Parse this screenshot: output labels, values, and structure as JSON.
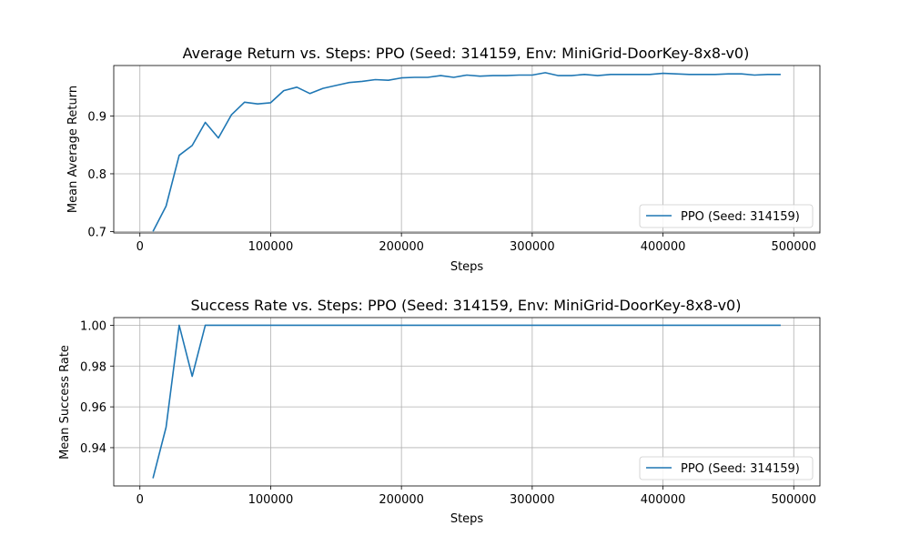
{
  "colors": {
    "series": "#1f77b4",
    "grid": "#b0b0b0",
    "background": "#ffffff"
  },
  "chart_data": [
    {
      "type": "line",
      "title": "Average Return vs. Steps: PPO (Seed: 314159, Env: MiniGrid-DoorKey-8x8-v0)",
      "xlabel": "Steps",
      "ylabel": "Mean Average Return",
      "xlim": [
        -20000,
        520000
      ],
      "ylim": [
        0.6975,
        0.9875
      ],
      "xticks": [
        0,
        100000,
        200000,
        300000,
        400000,
        500000
      ],
      "xtick_labels": [
        "0",
        "100000",
        "200000",
        "300000",
        "400000",
        "500000"
      ],
      "yticks": [
        0.7,
        0.8,
        0.9
      ],
      "ytick_labels": [
        "0.7",
        "0.8",
        "0.9"
      ],
      "grid": true,
      "legend_position": "lower-right",
      "series": [
        {
          "name": "PPO (Seed: 314159)",
          "x": [
            10000,
            20000,
            30000,
            40000,
            50000,
            60000,
            70000,
            80000,
            90000,
            100000,
            110000,
            120000,
            130000,
            140000,
            150000,
            160000,
            170000,
            180000,
            190000,
            200000,
            210000,
            220000,
            230000,
            240000,
            250000,
            260000,
            270000,
            280000,
            290000,
            300000,
            310000,
            320000,
            330000,
            340000,
            350000,
            360000,
            370000,
            380000,
            390000,
            400000,
            410000,
            420000,
            430000,
            440000,
            450000,
            460000,
            470000,
            480000,
            490000
          ],
          "y": [
            0.7,
            0.744,
            0.832,
            0.849,
            0.889,
            0.862,
            0.902,
            0.924,
            0.921,
            0.923,
            0.944,
            0.95,
            0.939,
            0.948,
            0.953,
            0.958,
            0.96,
            0.963,
            0.962,
            0.966,
            0.967,
            0.967,
            0.97,
            0.967,
            0.971,
            0.969,
            0.97,
            0.97,
            0.971,
            0.971,
            0.975,
            0.97,
            0.97,
            0.972,
            0.97,
            0.972,
            0.972,
            0.972,
            0.972,
            0.974,
            0.973,
            0.972,
            0.972,
            0.972,
            0.973,
            0.973,
            0.971,
            0.972,
            0.972
          ]
        }
      ]
    },
    {
      "type": "line",
      "title": "Success Rate vs. Steps: PPO (Seed: 314159, Env: MiniGrid-DoorKey-8x8-v0)",
      "xlabel": "Steps",
      "ylabel": "Mean Success Rate",
      "xlim": [
        -20000,
        520000
      ],
      "ylim": [
        0.92125,
        1.00375
      ],
      "xticks": [
        0,
        100000,
        200000,
        300000,
        400000,
        500000
      ],
      "xtick_labels": [
        "0",
        "100000",
        "200000",
        "300000",
        "400000",
        "500000"
      ],
      "yticks": [
        0.94,
        0.96,
        0.98,
        1.0
      ],
      "ytick_labels": [
        "0.94",
        "0.96",
        "0.98",
        "1.00"
      ],
      "grid": true,
      "legend_position": "lower-right",
      "series": [
        {
          "name": "PPO (Seed: 314159)",
          "x": [
            10000,
            20000,
            30000,
            40000,
            50000,
            60000,
            70000,
            80000,
            90000,
            100000,
            110000,
            120000,
            130000,
            140000,
            150000,
            160000,
            170000,
            180000,
            190000,
            200000,
            210000,
            220000,
            230000,
            240000,
            250000,
            260000,
            270000,
            280000,
            290000,
            300000,
            310000,
            320000,
            330000,
            340000,
            350000,
            360000,
            370000,
            380000,
            390000,
            400000,
            410000,
            420000,
            430000,
            440000,
            450000,
            460000,
            470000,
            480000,
            490000
          ],
          "y": [
            0.925,
            0.95,
            1.0,
            0.975,
            1.0,
            1.0,
            1.0,
            1.0,
            1.0,
            1.0,
            1.0,
            1.0,
            1.0,
            1.0,
            1.0,
            1.0,
            1.0,
            1.0,
            1.0,
            1.0,
            1.0,
            1.0,
            1.0,
            1.0,
            1.0,
            1.0,
            1.0,
            1.0,
            1.0,
            1.0,
            1.0,
            1.0,
            1.0,
            1.0,
            1.0,
            1.0,
            1.0,
            1.0,
            1.0,
            1.0,
            1.0,
            1.0,
            1.0,
            1.0,
            1.0,
            1.0,
            1.0,
            1.0,
            1.0
          ]
        }
      ]
    }
  ]
}
